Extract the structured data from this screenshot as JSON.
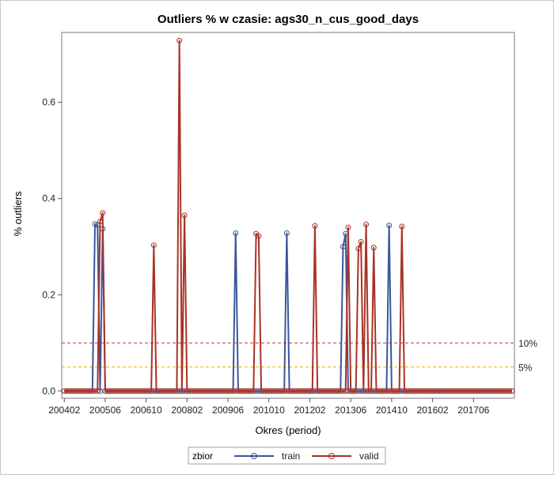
{
  "chart_data": {
    "type": "line",
    "title": "Outliers % w czasie: ags30_n_cus_good_days",
    "xlabel": "Okres (period)",
    "ylabel": "% outliers",
    "x_range": [
      200401,
      201810
    ],
    "ylim": [
      -0.015,
      0.745
    ],
    "x_tick_labels": [
      "200402",
      "200506",
      "200610",
      "200802",
      "200906",
      "201010",
      "201202",
      "201306",
      "201410",
      "201602",
      "201706"
    ],
    "y_tick_labels": [
      "0.0",
      "0.2",
      "0.4",
      "0.6"
    ],
    "y_tick_values": [
      0.0,
      0.2,
      0.4,
      0.6
    ],
    "reference_lines": [
      {
        "label": "10%",
        "value": 0.1,
        "color": "#c0392b"
      },
      {
        "label": "5%",
        "value": 0.05,
        "color": "#e6b800"
      }
    ],
    "legend_title": "zbior",
    "series": [
      {
        "name": "train",
        "color": "#3b5798",
        "points": [
          {
            "x": 200502,
            "y": 0.347
          },
          {
            "x": 200503,
            "y": 0.345
          },
          {
            "x": 200504,
            "y": 0.0
          },
          {
            "x": 200505,
            "y": 0.337
          },
          {
            "x": 200909,
            "y": 0.328
          },
          {
            "x": 201105,
            "y": 0.328
          },
          {
            "x": 201303,
            "y": 0.3
          },
          {
            "x": 201304,
            "y": 0.327
          },
          {
            "x": 201409,
            "y": 0.344
          }
        ]
      },
      {
        "name": "valid",
        "color": "#a93226",
        "points": [
          {
            "x": 200504,
            "y": 0.352
          },
          {
            "x": 200505,
            "y": 0.37
          },
          {
            "x": 200701,
            "y": 0.303
          },
          {
            "x": 200711,
            "y": 0.728
          },
          {
            "x": 200801,
            "y": 0.365
          },
          {
            "x": 201005,
            "y": 0.327
          },
          {
            "x": 201006,
            "y": 0.322
          },
          {
            "x": 201204,
            "y": 0.343
          },
          {
            "x": 201305,
            "y": 0.34
          },
          {
            "x": 201309,
            "y": 0.296
          },
          {
            "x": 201310,
            "y": 0.31
          },
          {
            "x": 201312,
            "y": 0.346
          },
          {
            "x": 201403,
            "y": 0.298
          },
          {
            "x": 201502,
            "y": 0.342
          }
        ]
      }
    ],
    "x_start": 200402,
    "x_end": 201809
  }
}
